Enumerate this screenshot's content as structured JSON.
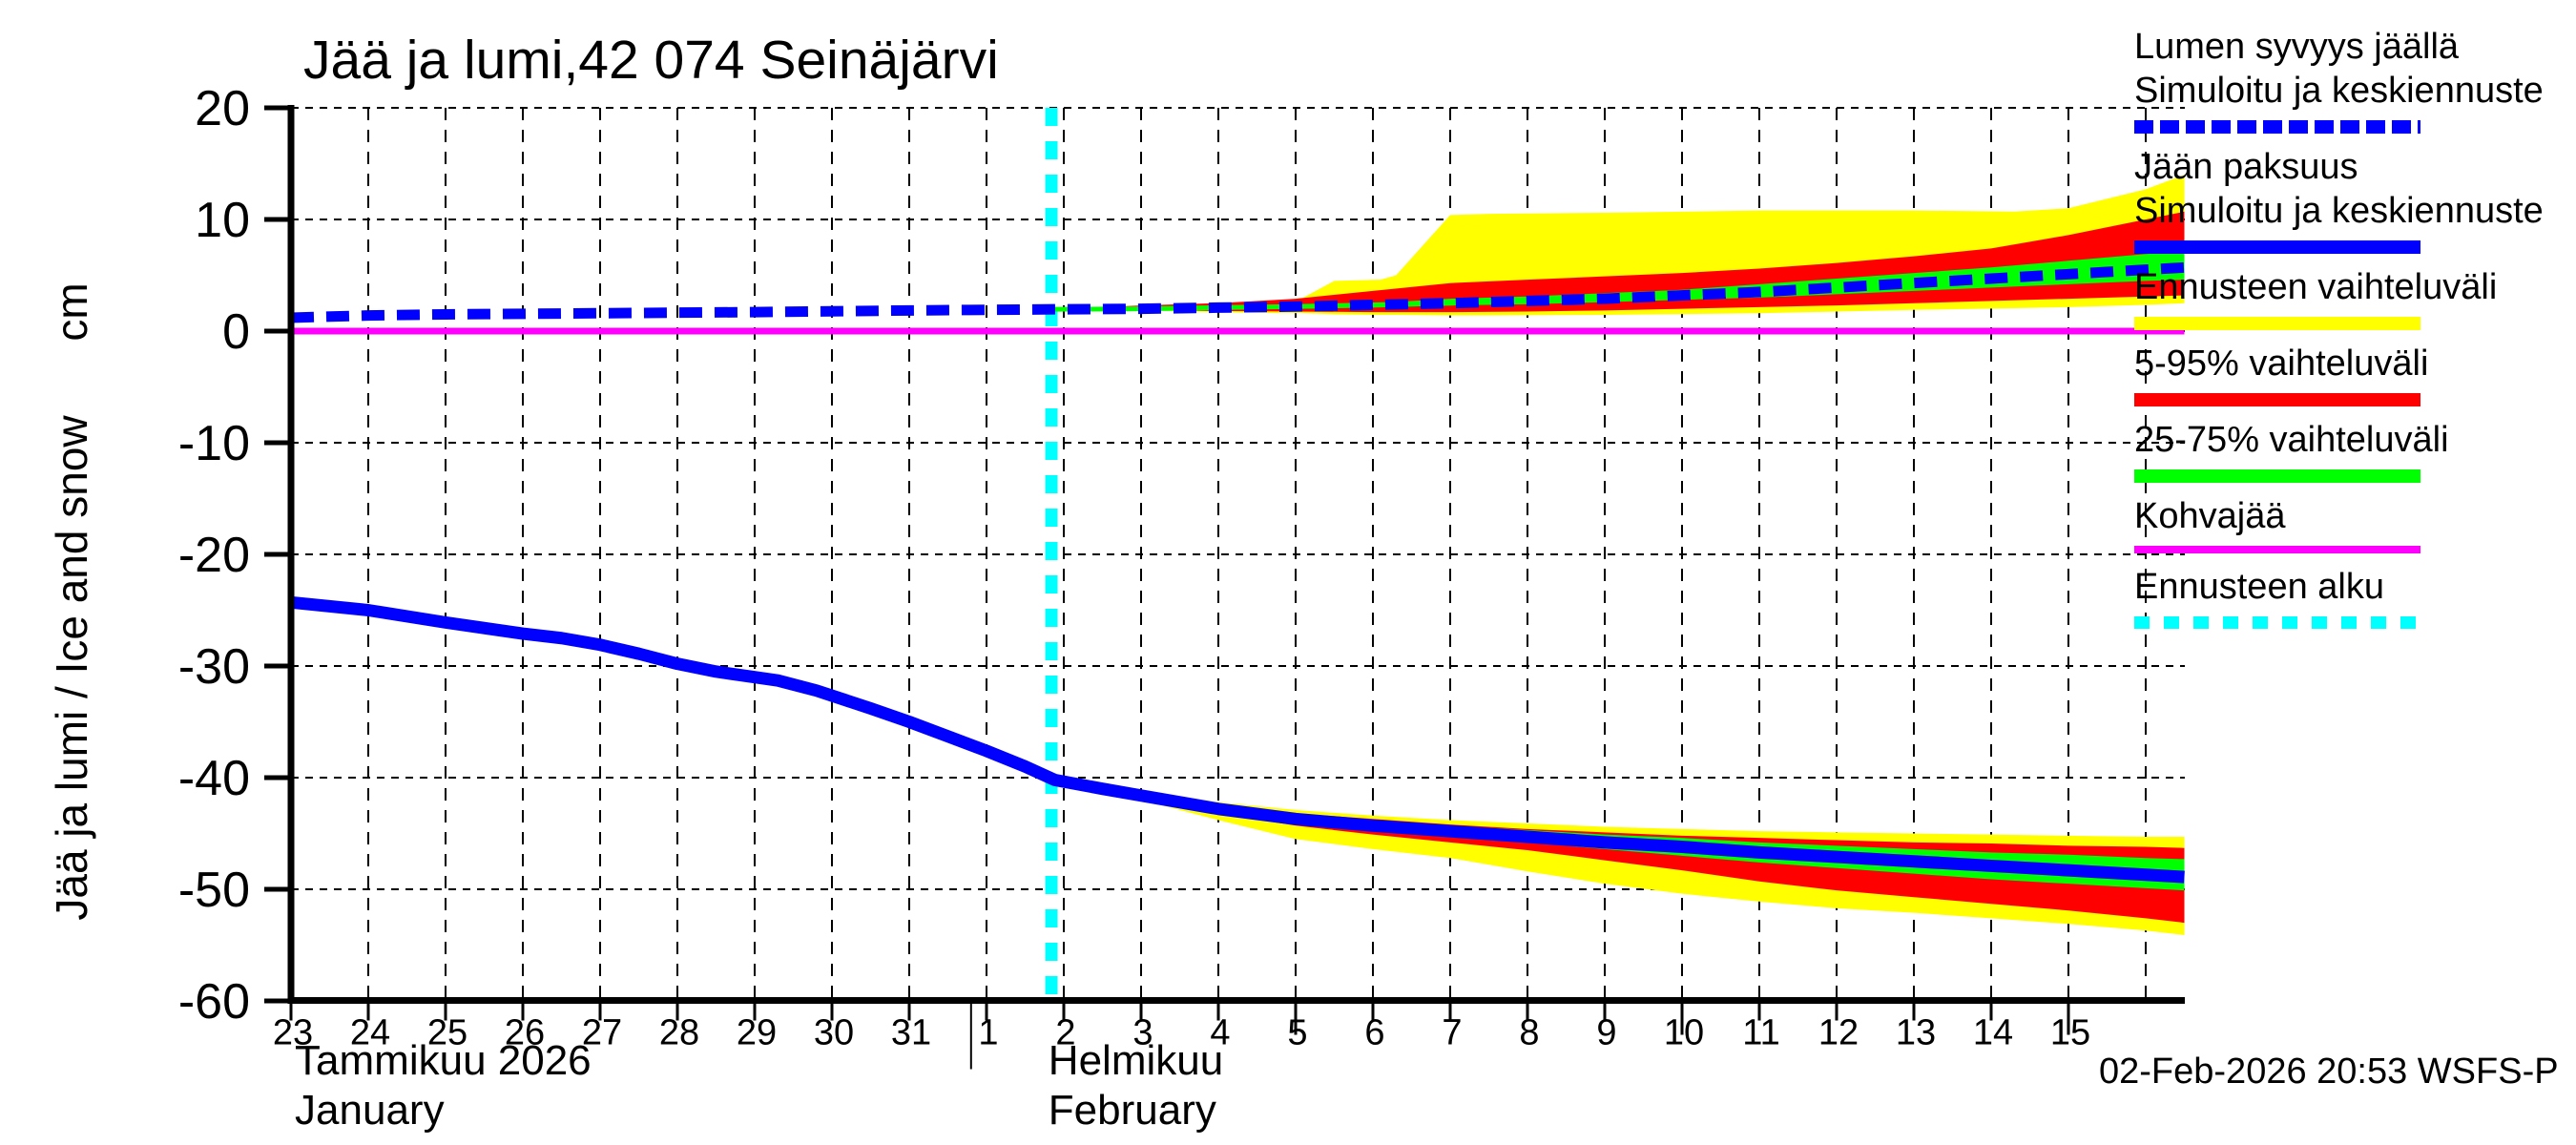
{
  "title": "Jää ja lumi,42 074 Seinäjärvi",
  "y_axis": {
    "label": "Jää ja lumi / Ice and snow",
    "unit": "cm",
    "ticks": [
      20,
      10,
      0,
      -10,
      -20,
      -30,
      -40,
      -50,
      -60
    ]
  },
  "x_axis": {
    "ticks": [
      {
        "day": 0,
        "label": "23"
      },
      {
        "day": 1,
        "label": "24"
      },
      {
        "day": 2,
        "label": "25"
      },
      {
        "day": 3,
        "label": "26"
      },
      {
        "day": 4,
        "label": "27"
      },
      {
        "day": 5,
        "label": "28"
      },
      {
        "day": 6,
        "label": "29"
      },
      {
        "day": 7,
        "label": "30"
      },
      {
        "day": 8,
        "label": "31"
      },
      {
        "day": 9,
        "label": "1"
      },
      {
        "day": 10,
        "label": "2"
      },
      {
        "day": 11,
        "label": "3"
      },
      {
        "day": 12,
        "label": "4"
      },
      {
        "day": 13,
        "label": "5"
      },
      {
        "day": 14,
        "label": "6"
      },
      {
        "day": 15,
        "label": "7"
      },
      {
        "day": 16,
        "label": "8"
      },
      {
        "day": 17,
        "label": "9"
      },
      {
        "day": 18,
        "label": "10"
      },
      {
        "day": 19,
        "label": "11"
      },
      {
        "day": 20,
        "label": "12"
      },
      {
        "day": 21,
        "label": "13"
      },
      {
        "day": 22,
        "label": "14"
      },
      {
        "day": 23,
        "label": "15"
      }
    ],
    "long_tick_days": [
      13,
      18,
      23
    ],
    "month_separator_day": 8.8,
    "months": [
      {
        "fi": "Tammikuu 2026",
        "en": "January",
        "day": 0.05
      },
      {
        "fi": "Helmikuu",
        "en": "February",
        "day": 9.8
      }
    ]
  },
  "footer": {
    "timestamp": "02-Feb-2026 20:53 WSFS-P"
  },
  "colors": {
    "median": "#0000ff",
    "range_minmax": "#ffff00",
    "range_5_95": "#ff0000",
    "range_25_75": "#00ff00",
    "kohvajaa": "#ff00ff",
    "forecast_start": "#00ffff",
    "axis": "#000000"
  },
  "legend": [
    {
      "key": "snow-median",
      "lines": [
        "Lumen syvyys jäällä",
        "Simuloitu ja keskiennuste"
      ],
      "swatch": "blue-dashed"
    },
    {
      "key": "ice-median",
      "lines": [
        "Jään paksuus",
        "Simuloitu ja keskiennuste"
      ],
      "swatch": "blue"
    },
    {
      "key": "range-minmax",
      "lines": [
        "Ennusteen vaihteluväli"
      ],
      "swatch": "yellow"
    },
    {
      "key": "range-5-95",
      "lines": [
        "5-95% vaihteluväli"
      ],
      "swatch": "red"
    },
    {
      "key": "range-25-75",
      "lines": [
        "25-75% vaihteluväli"
      ],
      "swatch": "green"
    },
    {
      "key": "kohvajaa",
      "lines": [
        "Kohvajää"
      ],
      "swatch": "magenta"
    },
    {
      "key": "forecast-start",
      "lines": [
        "Ennusteen alku"
      ],
      "swatch": "cyan-dashed"
    }
  ],
  "chart_data": {
    "type": "line",
    "title": "Jää ja lumi,42 074 Seinäjärvi",
    "ylabel": "Jää ja lumi / Ice and snow (cm)",
    "x_unit": "days since 2026-01-23",
    "x_range": [
      0,
      24.5
    ],
    "y_range": [
      -60,
      20
    ],
    "grid": true,
    "legend_position": "right",
    "forecast_start_day": 9.84,
    "bands": [
      {
        "name": "snow-range-minmax",
        "label": "Ennusteen vaihteluväli (lumi)",
        "color": "#ffff00",
        "x": [
          9.88,
          11,
          12,
          12.8,
          13.1,
          13.5,
          14.1,
          14.3,
          15,
          15.5,
          17,
          19,
          21,
          22.3,
          23,
          24,
          24.5
        ],
        "upper": [
          1.95,
          2.2,
          2.4,
          2.7,
          3.0,
          4.5,
          4.6,
          5.0,
          10.4,
          10.5,
          10.6,
          10.8,
          10.8,
          10.7,
          11.0,
          12.7,
          14.0
        ],
        "lower": [
          1.95,
          1.85,
          1.7,
          1.6,
          1.6,
          1.5,
          1.45,
          1.45,
          1.4,
          1.4,
          1.45,
          1.6,
          1.9,
          2.05,
          2.15,
          2.35,
          2.5
        ]
      },
      {
        "name": "snow-range-5-95",
        "label": "5-95% vaihteluväli (lumi)",
        "color": "#ff0000",
        "x": [
          9.88,
          11,
          12,
          13,
          14,
          15,
          16,
          17,
          18,
          19,
          20,
          21,
          22,
          23,
          24,
          24.5
        ],
        "upper": [
          1.95,
          2.3,
          2.5,
          2.9,
          3.6,
          4.3,
          4.6,
          4.9,
          5.2,
          5.6,
          6.1,
          6.7,
          7.4,
          8.6,
          10.0,
          10.7
        ],
        "lower": [
          1.95,
          1.9,
          1.8,
          1.75,
          1.7,
          1.7,
          1.75,
          1.85,
          2.0,
          2.15,
          2.3,
          2.5,
          2.7,
          2.9,
          3.1,
          3.2
        ]
      },
      {
        "name": "snow-range-25-75",
        "label": "25-75% vaihteluväli (lumi)",
        "color": "#00ff00",
        "x": [
          9.88,
          11,
          12,
          13,
          14,
          15,
          16,
          17,
          18,
          19,
          20,
          21,
          22,
          23,
          24,
          24.5
        ],
        "upper": [
          1.95,
          2.1,
          2.2,
          2.3,
          2.5,
          2.9,
          3.1,
          3.4,
          3.7,
          4.2,
          4.7,
          5.2,
          5.7,
          6.3,
          6.9,
          7.1
        ],
        "lower": [
          1.95,
          1.95,
          2.0,
          2.0,
          2.1,
          2.3,
          2.4,
          2.6,
          2.8,
          3.0,
          3.3,
          3.6,
          3.9,
          4.2,
          4.5,
          4.6
        ]
      },
      {
        "name": "ice-range-minmax",
        "label": "Ennusteen vaihteluväli (jää)",
        "color": "#ffff00",
        "x": [
          9.88,
          10.5,
          11,
          12,
          13,
          14,
          15,
          16,
          17,
          18,
          19,
          20,
          21,
          22,
          23,
          24,
          24.5
        ],
        "upper": [
          -40.2,
          -40.8,
          -41.3,
          -42.2,
          -42.9,
          -43.4,
          -43.8,
          -44.1,
          -44.4,
          -44.6,
          -44.8,
          -44.9,
          -45.0,
          -45.1,
          -45.2,
          -45.3,
          -45.3
        ],
        "lower": [
          -40.2,
          -41.3,
          -42.0,
          -43.8,
          -45.5,
          -46.4,
          -47.2,
          -48.4,
          -49.5,
          -50.4,
          -51.1,
          -51.7,
          -52.1,
          -52.6,
          -53.1,
          -53.7,
          -54.1
        ]
      },
      {
        "name": "ice-range-5-95",
        "label": "5-95% vaihteluväli (jää)",
        "color": "#ff0000",
        "x": [
          9.88,
          10.5,
          11,
          12,
          13,
          14,
          15,
          16,
          17,
          18,
          19,
          20,
          21,
          22,
          23,
          24,
          24.5
        ],
        "upper": [
          -40.2,
          -40.9,
          -41.4,
          -42.4,
          -43.2,
          -43.7,
          -44.2,
          -44.6,
          -44.9,
          -45.2,
          -45.4,
          -45.6,
          -45.8,
          -45.9,
          -46.1,
          -46.2,
          -46.3
        ],
        "lower": [
          -40.2,
          -41.1,
          -41.8,
          -43.2,
          -44.3,
          -45.1,
          -45.8,
          -46.5,
          -47.4,
          -48.3,
          -49.3,
          -50.1,
          -50.7,
          -51.3,
          -51.9,
          -52.6,
          -53.0
        ]
      },
      {
        "name": "ice-range-25-75",
        "label": "25-75% vaihteluväli (jää)",
        "color": "#00ff00",
        "x": [
          9.88,
          10.5,
          11,
          12,
          13,
          14,
          15,
          16,
          17,
          18,
          19,
          20,
          21,
          22,
          23,
          24,
          24.5
        ],
        "upper": [
          -40.2,
          -40.95,
          -41.5,
          -42.6,
          -43.4,
          -43.9,
          -44.3,
          -44.7,
          -45.1,
          -45.4,
          -45.8,
          -46.1,
          -46.4,
          -46.7,
          -46.9,
          -47.2,
          -47.3
        ],
        "lower": [
          -40.2,
          -41.05,
          -41.7,
          -43.0,
          -44.0,
          -44.6,
          -45.2,
          -45.8,
          -46.4,
          -47.0,
          -47.6,
          -48.1,
          -48.6,
          -49.1,
          -49.5,
          -49.9,
          -50.1
        ]
      }
    ],
    "lines": [
      {
        "name": "kohvajaa",
        "label": "Kohvajää",
        "color": "#ff00ff",
        "width": 7,
        "dash": null,
        "x": [
          0,
          24.5
        ],
        "y": [
          0,
          0
        ]
      },
      {
        "name": "ice-thickness",
        "label": "Jään paksuus — simuloitu ja keskiennuste",
        "color": "#0000ff",
        "width": 13,
        "dash": null,
        "x": [
          0,
          1,
          2,
          3,
          3.5,
          4,
          4.5,
          5,
          5.5,
          6,
          6.3,
          6.8,
          7.5,
          8,
          8.5,
          9,
          9.5,
          9.88,
          10.5,
          11,
          12,
          13,
          14,
          15,
          16,
          17,
          18,
          19,
          20,
          21,
          22,
          23,
          24,
          24.5
        ],
        "y": [
          -24.3,
          -25.0,
          -26.1,
          -27.1,
          -27.5,
          -28.1,
          -28.9,
          -29.8,
          -30.5,
          -31.0,
          -31.3,
          -32.2,
          -33.8,
          -35.0,
          -36.3,
          -37.6,
          -39.0,
          -40.2,
          -41.0,
          -41.6,
          -42.8,
          -43.7,
          -44.3,
          -44.8,
          -45.3,
          -45.8,
          -46.2,
          -46.7,
          -47.1,
          -47.5,
          -47.9,
          -48.3,
          -48.7,
          -48.9
        ]
      },
      {
        "name": "snow-median-forecast-underlay",
        "label": "Lumen syvyys keskiennuste (25-75 keskiviiva)",
        "color": "#00ff00",
        "width": 5,
        "dash": null,
        "x": [
          9.88,
          11,
          12,
          13,
          14,
          15,
          16,
          17,
          18,
          19,
          20,
          21,
          22,
          23,
          24,
          24.5
        ],
        "y": [
          1.95,
          2.0,
          2.1,
          2.2,
          2.35,
          2.5,
          2.7,
          2.9,
          3.2,
          3.5,
          3.9,
          4.3,
          4.7,
          5.1,
          5.5,
          5.7
        ]
      },
      {
        "name": "snow-depth",
        "label": "Lumen syvyys jäällä — simuloitu ja keskiennuste",
        "color": "#0000ff",
        "width": 11,
        "dash": "24 13",
        "x": [
          0,
          1,
          2,
          4,
          6,
          8,
          9.88,
          11,
          12,
          13,
          14,
          15,
          16,
          17,
          18,
          19,
          20,
          21,
          22,
          23,
          24,
          24.5
        ],
        "y": [
          1.2,
          1.4,
          1.5,
          1.6,
          1.7,
          1.85,
          1.95,
          2.0,
          2.1,
          2.2,
          2.35,
          2.5,
          2.7,
          2.9,
          3.2,
          3.5,
          3.9,
          4.3,
          4.7,
          5.1,
          5.5,
          5.7
        ]
      }
    ]
  }
}
